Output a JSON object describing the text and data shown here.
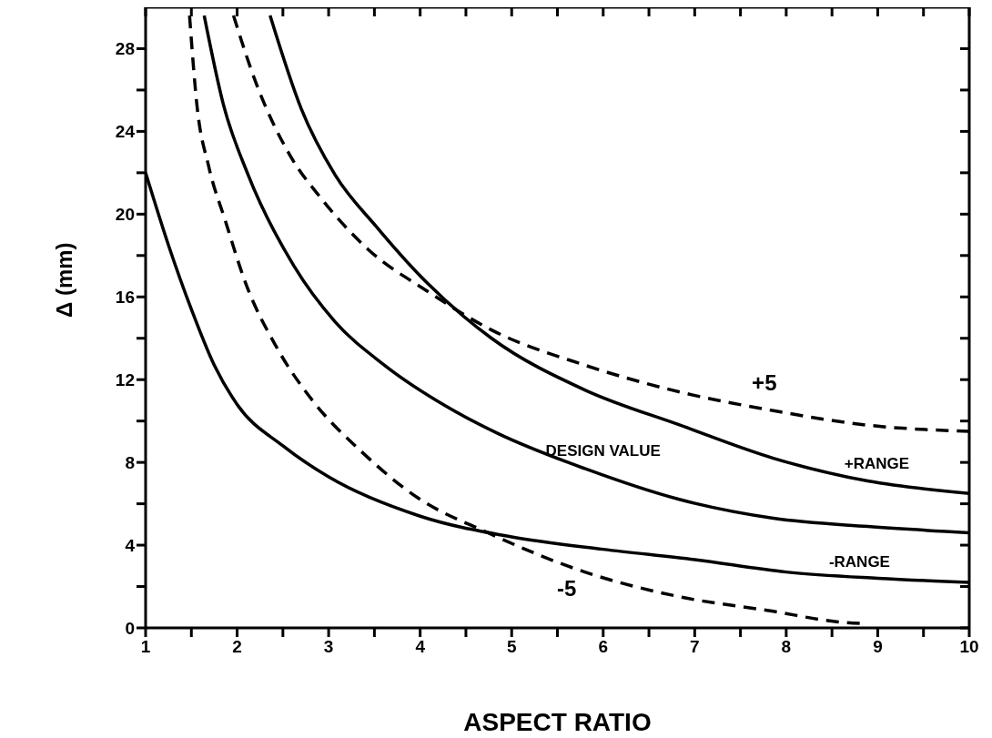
{
  "chart_data": {
    "type": "line",
    "xlabel": "ASPECT RATIO",
    "ylabel": "Δ (mm)",
    "xlim": [
      1,
      10
    ],
    "ylim": [
      0,
      30
    ],
    "xticks": [
      1,
      {
        "value": 1.5,
        "label": null
      },
      2,
      {
        "value": 2.5,
        "label": null
      },
      3,
      {
        "value": 3.5,
        "label": null
      },
      4,
      {
        "value": 4.5,
        "label": null
      },
      5,
      {
        "value": 5.5,
        "label": null
      },
      6,
      {
        "value": 6.5,
        "label": null
      },
      7,
      {
        "value": 7.5,
        "label": null
      },
      8,
      {
        "value": 8.5,
        "label": null
      },
      9,
      {
        "value": 9.5,
        "label": null
      },
      10
    ],
    "yticks": [
      0,
      {
        "value": 2,
        "label": null
      },
      4,
      {
        "value": 6,
        "label": null
      },
      8,
      {
        "value": 10,
        "label": null
      },
      12,
      {
        "value": 14,
        "label": null
      },
      16,
      {
        "value": 18,
        "label": null
      },
      20,
      {
        "value": 22,
        "label": null
      },
      24,
      {
        "value": 26,
        "label": null
      },
      28
    ],
    "grid": false,
    "marker": "none",
    "series": [
      {
        "name": "+5",
        "color": "#000000",
        "line_style": "dashed",
        "x": [
          1.96,
          2.21,
          2.57,
          2.93,
          3.43,
          4.07,
          4.78,
          5.8,
          6.84,
          7.86,
          8.89,
          10
        ],
        "values": [
          29.6,
          26.3,
          22.9,
          20.7,
          18.3,
          16.3,
          14.4,
          12.7,
          11.4,
          10.5,
          9.8,
          9.5
        ]
      },
      {
        "name": "+RANGE",
        "color": "#000000",
        "line_style": "solid",
        "x": [
          2.36,
          2.7,
          3.07,
          3.52,
          4.07,
          4.78,
          5.8,
          6.84,
          7.86,
          8.89,
          10
        ],
        "values": [
          29.6,
          25.1,
          21.9,
          19.4,
          16.7,
          14.0,
          11.5,
          9.8,
          8.2,
          7.1,
          6.5
        ]
      },
      {
        "name": "DESIGN VALUE",
        "color": "#000000",
        "line_style": "solid",
        "x": [
          1.64,
          1.85,
          2.12,
          2.62,
          3.07,
          3.61,
          4.29,
          4.85,
          5.8,
          6.84,
          7.86,
          8.89,
          10
        ],
        "values": [
          29.6,
          25.3,
          21.9,
          17.5,
          14.8,
          12.7,
          10.7,
          9.4,
          7.7,
          6.2,
          5.3,
          4.9,
          4.6
        ]
      },
      {
        "name": "-RANGE",
        "color": "#000000",
        "line_style": "solid",
        "x": [
          1,
          1.25,
          1.5,
          1.75,
          2,
          2.5,
          3,
          4,
          5,
          6,
          7,
          8,
          9,
          10
        ],
        "values": [
          22,
          18.5,
          15.4,
          12.7,
          10.8,
          8.8,
          7.3,
          5.4,
          4.4,
          3.8,
          3.3,
          2.7,
          2.4,
          2.2
        ]
      },
      {
        "name": "-5",
        "color": "#000000",
        "line_style": "dashed",
        "x": [
          1.48,
          1.56,
          1.69,
          1.87,
          2.09,
          2.44,
          2.84,
          3.34,
          3.97,
          4.74,
          5.8,
          6.84,
          7.86,
          8.55,
          8.89
        ],
        "values": [
          29.6,
          25.3,
          22.3,
          19.7,
          16.7,
          13.5,
          10.9,
          8.6,
          6.3,
          4.6,
          2.7,
          1.5,
          0.8,
          0.3,
          0.2
        ]
      }
    ]
  }
}
